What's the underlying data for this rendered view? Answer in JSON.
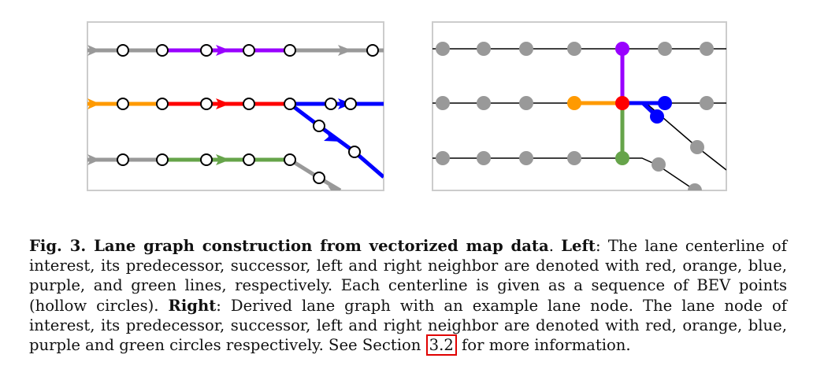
{
  "figure": {
    "colors": {
      "interest": "#ff0000",
      "predecessor": "#ff9a00",
      "successor": "#0000ff",
      "left_neighbor": "#9900ff",
      "right_neighbor": "#66a44a",
      "other_lane": "#999999",
      "panel_border": "#cccccc"
    }
  },
  "caption": {
    "fig_label": "Fig. 3.",
    "title": "Lane graph construction from vectorized map data",
    "left_label": "Left",
    "left_text": ": The lane centerline of interest, its predecessor, successor, left and right neighbor are denoted with red, orange, blue, purple, and green lines, respectively. Each centerline is given as a sequence of BEV points (hollow circles). ",
    "right_label": "Right",
    "right_text": ": Derived lane graph with an example lane node. The lane node of interest, its predecessor, successor, left and right neighbor are denoted with red, orange, blue, purple and green circles respectively. See Section ",
    "section_ref": "3.2",
    "end_text": " for more information."
  }
}
